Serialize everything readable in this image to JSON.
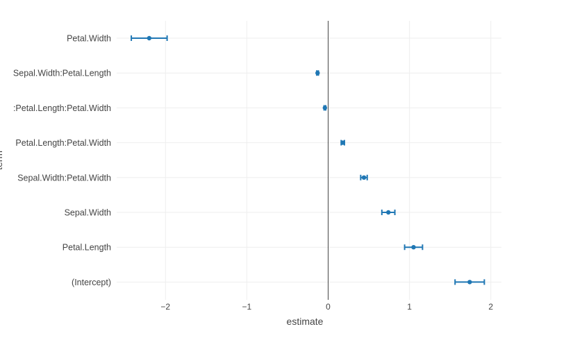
{
  "chart_data": {
    "type": "scatter",
    "title": "",
    "xlabel": "estimate",
    "ylabel": "term",
    "xlim": [
      -2.6,
      2.13
    ],
    "x_ticks": [
      -2,
      -1,
      0,
      1,
      2
    ],
    "x_tick_labels": [
      "−2",
      "−1",
      "0",
      "1",
      "2"
    ],
    "reference_line_x": 0,
    "grid": true,
    "marker_color": "#1f77b4",
    "axis_line_color": "#444444",
    "grid_color": "#eeeeee",
    "categories": [
      "(Intercept)",
      "Petal.Length",
      "Sepal.Width",
      "Sepal.Width:Petal.Width",
      "Petal.Length:Petal.Width",
      ":Petal.Length:Petal.Width",
      "Sepal.Width:Petal.Length",
      "Petal.Width"
    ],
    "series": [
      {
        "estimates": [
          1.74,
          1.05,
          0.74,
          0.44,
          0.18,
          -0.04,
          -0.13,
          -2.2
        ],
        "lower": [
          1.56,
          0.94,
          0.66,
          0.4,
          0.16,
          -0.05,
          -0.14,
          -2.42
        ],
        "upper": [
          1.92,
          1.16,
          0.82,
          0.48,
          0.2,
          -0.03,
          -0.12,
          -1.98
        ]
      }
    ]
  }
}
